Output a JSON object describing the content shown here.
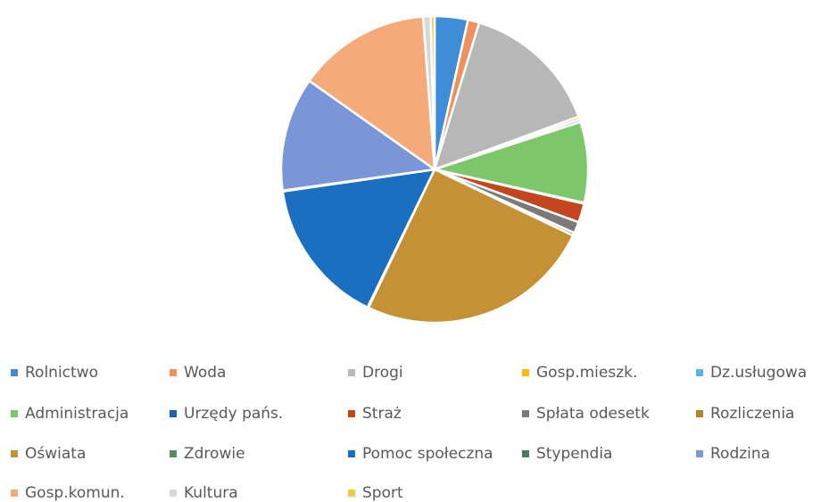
{
  "chart_data": {
    "type": "pie",
    "categories": [
      "Rolnictwo",
      "Woda",
      "Drogi",
      "Gosp.mieszk.",
      "Dz.usługowa",
      "Administracja",
      "Urzędy pańs.",
      "Straż",
      "Spłata odesetk",
      "Rozliczenia",
      "Oświata",
      "Zdrowie",
      "Pomoc społeczna",
      "Stypendia",
      "Rodzina",
      "Gosp.komun.",
      "Kultura",
      "Sport"
    ],
    "values": [
      3.5,
      1.2,
      14.7,
      0.3,
      0.3,
      8.5,
      0.1,
      2,
      1.2,
      0.3,
      25,
      0.1,
      15.5,
      0.1,
      12,
      14,
      0.8,
      0.4
    ],
    "colors": [
      "#3d8ed6",
      "#f0905a",
      "#b7b7b7",
      "#f5c000",
      "#5ab4e6",
      "#7cc76a",
      "#1f5fb5",
      "#c4461e",
      "#7a7a7a",
      "#b8862a",
      "#c49234",
      "#5a8a5a",
      "#1a6fc0",
      "#4a7a5a",
      "#7b96d8",
      "#f5aa7a",
      "#d8d8d8",
      "#f5c842"
    ],
    "legend": "bottom"
  }
}
